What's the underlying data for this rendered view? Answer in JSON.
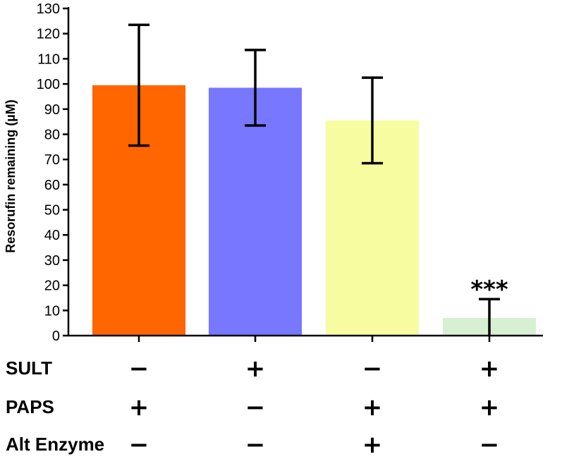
{
  "chart_data": {
    "type": "bar",
    "ylabel": "Resorufin remaining (µM)",
    "ylim": [
      0,
      130
    ],
    "yticks": [
      0,
      10,
      20,
      30,
      40,
      50,
      60,
      70,
      80,
      90,
      100,
      110,
      120,
      130
    ],
    "grid": false,
    "bars": [
      {
        "value": 99.5,
        "error": 24,
        "color": "#ff6600"
      },
      {
        "value": 98.5,
        "error": 15,
        "color": "#7777ff"
      },
      {
        "value": 85.5,
        "error": 17,
        "color": "#f8fca0"
      },
      {
        "value": 7,
        "error": 7.5,
        "color": "#d7f0d2",
        "annotation": "***"
      }
    ],
    "condition_rows": [
      {
        "label": "SULT",
        "signs": [
          "−",
          "+",
          "−",
          "+"
        ]
      },
      {
        "label": "PAPS",
        "signs": [
          "+",
          "−",
          "+",
          "+"
        ]
      },
      {
        "label": "Alt Enzyme",
        "signs": [
          "−",
          "−",
          "+",
          "−"
        ]
      }
    ]
  }
}
